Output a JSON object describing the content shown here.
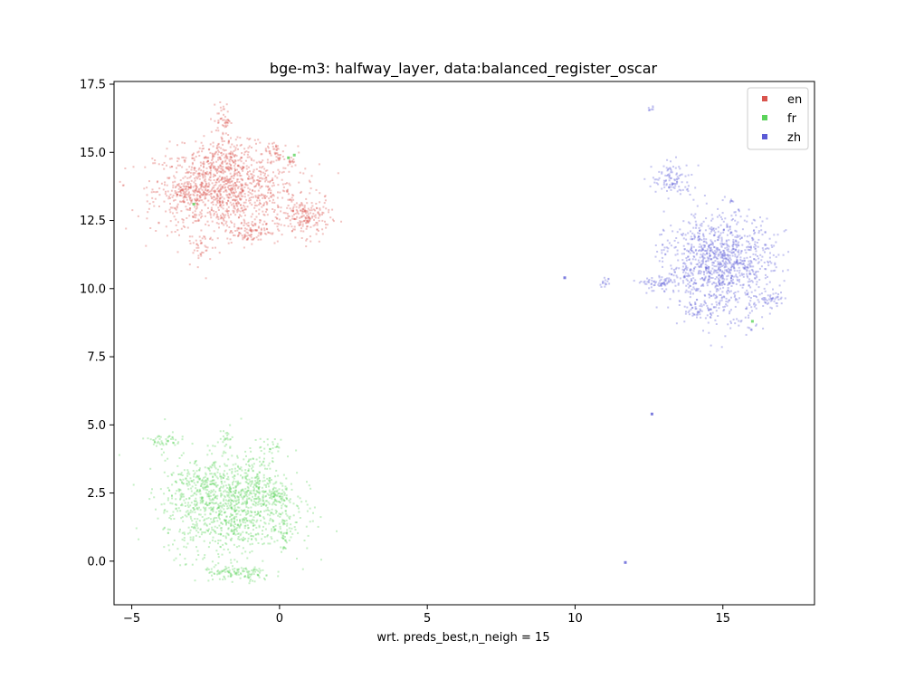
{
  "chart_data": {
    "type": "scatter",
    "title": "bge-m3: halfway_layer, data:balanced_register_oscar",
    "xlabel": "wrt. preds_best,n_neigh = 15",
    "ylabel": "",
    "xlim": [
      -5.6,
      18.1
    ],
    "ylim": [
      -1.6,
      17.6
    ],
    "x_ticks": [
      -5,
      0,
      5,
      10,
      15
    ],
    "x_tick_labels": [
      "−5",
      "0",
      "5",
      "10",
      "15"
    ],
    "y_ticks": [
      0.0,
      2.5,
      5.0,
      7.5,
      10.0,
      12.5,
      15.0,
      17.5
    ],
    "y_tick_labels": [
      "0.0",
      "2.5",
      "5.0",
      "7.5",
      "10.0",
      "12.5",
      "15.0",
      "17.5"
    ],
    "grid": false,
    "legend_position": "top-right",
    "series": [
      {
        "name": "en",
        "color": "#d9544d",
        "clusters": [
          {
            "x": -1.8,
            "y": 13.6,
            "sx": 1.2,
            "sy": 0.8,
            "n": 1100
          },
          {
            "x": -3.1,
            "y": 13.5,
            "sx": 0.4,
            "sy": 0.25,
            "n": 120
          },
          {
            "x": 0.9,
            "y": 12.6,
            "sx": 0.4,
            "sy": 0.35,
            "n": 180
          },
          {
            "x": -1.0,
            "y": 12.1,
            "sx": 0.5,
            "sy": 0.2,
            "n": 90
          },
          {
            "x": -2.0,
            "y": 14.8,
            "sx": 0.5,
            "sy": 0.35,
            "n": 120
          },
          {
            "x": -1.9,
            "y": 16.2,
            "sx": 0.12,
            "sy": 0.3,
            "n": 50
          },
          {
            "x": -2.7,
            "y": 11.5,
            "sx": 0.12,
            "sy": 0.3,
            "n": 30
          },
          {
            "x": -0.2,
            "y": 15.1,
            "sx": 0.15,
            "sy": 0.2,
            "n": 30
          },
          {
            "x": 0.4,
            "y": 14.7,
            "sx": 0.1,
            "sy": 0.1,
            "n": 15
          }
        ],
        "points": []
      },
      {
        "name": "fr",
        "color": "#5bd35b",
        "clusters": [
          {
            "x": -1.7,
            "y": 2.0,
            "sx": 1.1,
            "sy": 0.9,
            "n": 1100
          },
          {
            "x": -1.4,
            "y": -0.45,
            "sx": 0.6,
            "sy": 0.15,
            "n": 120
          },
          {
            "x": -0.9,
            "y": 3.0,
            "sx": 0.5,
            "sy": 0.4,
            "n": 120
          },
          {
            "x": -2.8,
            "y": 2.9,
            "sx": 0.4,
            "sy": 0.3,
            "n": 80
          },
          {
            "x": -3.9,
            "y": 4.4,
            "sx": 0.35,
            "sy": 0.12,
            "n": 50
          },
          {
            "x": 0.2,
            "y": 1.0,
            "sx": 0.15,
            "sy": 0.3,
            "n": 40
          },
          {
            "x": -1.8,
            "y": 4.4,
            "sx": 0.12,
            "sy": 0.25,
            "n": 25
          },
          {
            "x": -0.3,
            "y": 4.2,
            "sx": 0.2,
            "sy": 0.15,
            "n": 25
          },
          {
            "x": 0.0,
            "y": 2.4,
            "sx": 0.2,
            "sy": 0.2,
            "n": 50
          }
        ],
        "points": [
          {
            "x": 0.5,
            "y": 14.9
          },
          {
            "x": 0.3,
            "y": 14.8
          },
          {
            "x": 16.0,
            "y": 8.8
          },
          {
            "x": -2.9,
            "y": 13.1
          }
        ]
      },
      {
        "name": "zh",
        "color": "#5b5bd6",
        "clusters": [
          {
            "x": 14.9,
            "y": 10.9,
            "sx": 0.9,
            "sy": 0.9,
            "n": 1100
          },
          {
            "x": 13.3,
            "y": 14.0,
            "sx": 0.35,
            "sy": 0.3,
            "n": 100
          },
          {
            "x": 12.9,
            "y": 10.2,
            "sx": 0.3,
            "sy": 0.1,
            "n": 60
          },
          {
            "x": 14.2,
            "y": 9.2,
            "sx": 0.3,
            "sy": 0.15,
            "n": 40
          },
          {
            "x": 16.6,
            "y": 9.6,
            "sx": 0.25,
            "sy": 0.12,
            "n": 40
          },
          {
            "x": 11.0,
            "y": 10.2,
            "sx": 0.1,
            "sy": 0.08,
            "n": 15
          },
          {
            "x": 12.55,
            "y": 16.6,
            "sx": 0.05,
            "sy": 0.05,
            "n": 8
          },
          {
            "x": 15.3,
            "y": 13.2,
            "sx": 0.05,
            "sy": 0.05,
            "n": 6
          },
          {
            "x": 13.0,
            "y": 11.4,
            "sx": 0.1,
            "sy": 0.1,
            "n": 10
          },
          {
            "x": 16.0,
            "y": 8.5,
            "sx": 0.1,
            "sy": 0.1,
            "n": 8
          }
        ],
        "points": [
          {
            "x": 9.65,
            "y": 10.4
          },
          {
            "x": 12.6,
            "y": 5.4
          },
          {
            "x": 11.7,
            "y": -0.05
          }
        ]
      }
    ]
  }
}
